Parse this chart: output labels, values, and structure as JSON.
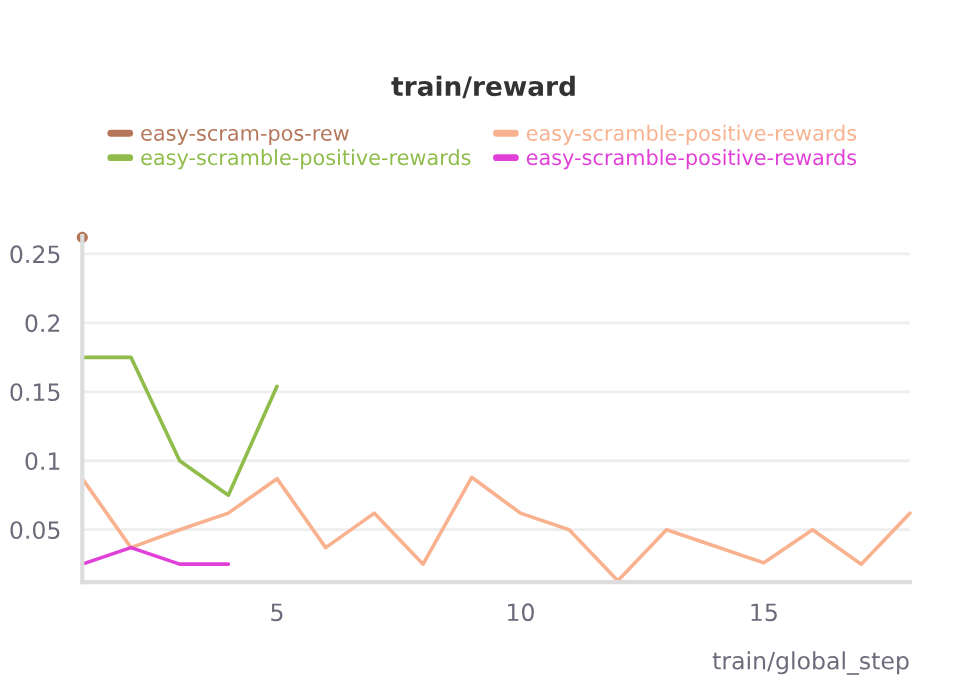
{
  "chart_data": {
    "type": "line",
    "title": "train/reward",
    "xlabel": "train/global_step",
    "x": [
      1,
      2,
      3,
      4,
      5,
      6,
      7,
      8,
      9,
      10,
      11,
      12,
      13,
      14,
      15,
      16,
      17,
      18
    ],
    "series": [
      {
        "name": "easy-scram-pos-rew",
        "color": "#b5775a",
        "marker": "circle",
        "values": [
          0.262,
          null,
          null,
          null,
          null,
          null,
          null,
          null,
          null,
          null,
          null,
          null,
          null,
          null,
          null,
          null,
          null,
          null
        ]
      },
      {
        "name": "easy-scramble-positive-rewards",
        "color": "#8fbc4a",
        "values": [
          0.175,
          0.175,
          0.1,
          0.075,
          0.154,
          null,
          null,
          null,
          null,
          null,
          null,
          null,
          null,
          null,
          null,
          null,
          null,
          null
        ]
      },
      {
        "name": "easy-scramble-positive-rewards",
        "color": "#f9b28f",
        "values": [
          0.087,
          0.037,
          0.05,
          0.062,
          0.087,
          0.037,
          0.062,
          0.025,
          0.088,
          0.062,
          0.05,
          0.013,
          0.05,
          0.038,
          0.026,
          0.05,
          0.025,
          0.062
        ]
      },
      {
        "name": "easy-scramble-positive-rewards",
        "color": "#e040d8",
        "values": [
          0.025,
          0.037,
          0.025,
          0.025,
          null,
          null,
          null,
          null,
          null,
          null,
          null,
          null,
          null,
          null,
          null,
          null,
          null,
          null
        ]
      }
    ],
    "xlim": [
      1,
      18
    ],
    "xticks": [
      5,
      10,
      15
    ],
    "ylim": [
      0.012,
      0.263
    ],
    "yticks": [
      0.05,
      0.1,
      0.15,
      0.2,
      0.25
    ],
    "grid": "y",
    "legend": "top",
    "line_style": "solid"
  }
}
